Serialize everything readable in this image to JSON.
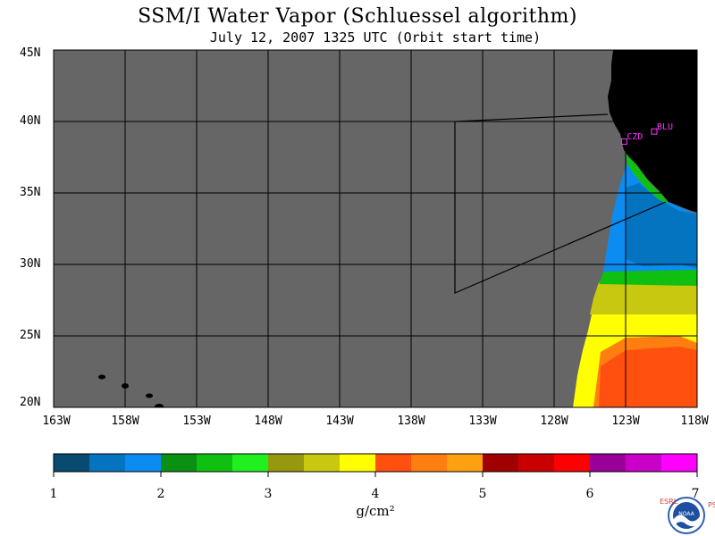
{
  "title": "SSM/I Water Vapor (Schluessel algorithm)",
  "subtitle": "July 12, 2007  1325 UTC  (Orbit start time)",
  "map": {
    "lat_range": [
      20,
      45
    ],
    "lon_range": [
      -163,
      -118
    ],
    "lat_ticks": [
      "45N",
      "40N",
      "35N",
      "30N",
      "25N",
      "20N"
    ],
    "lon_ticks": [
      "163W",
      "158W",
      "153W",
      "148W",
      "143W",
      "138W",
      "133W",
      "128W",
      "123W",
      "118W"
    ],
    "colors": {
      "no_data": "#666666",
      "land": "#000000",
      "grid": "#000000"
    },
    "stations": [
      {
        "label": "CZD",
        "lon": -123.1,
        "lat": 38.6
      },
      {
        "label": "BLU",
        "lon": -121.0,
        "lat": 39.3
      }
    ]
  },
  "colorbar": {
    "ticks": [
      "1",
      "2",
      "3",
      "4",
      "5",
      "6",
      "7"
    ],
    "units": "g/cm²",
    "colors": [
      "#084a70",
      "#0473c0",
      "#0c8cf0",
      "#0a9012",
      "#10c010",
      "#20f020",
      "#989810",
      "#c8c810",
      "#ffff00",
      "#ff5010",
      "#ff7e10",
      "#ffa010",
      "#a00000",
      "#c80000",
      "#ff0000",
      "#980098",
      "#c800c8",
      "#ff00ff"
    ]
  },
  "logo": {
    "left": "ESRL",
    "center": "NOAA",
    "right": "PSD"
  }
}
